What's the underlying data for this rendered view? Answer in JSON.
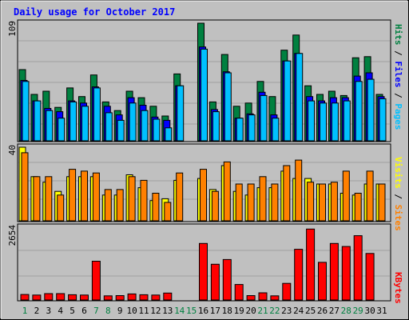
{
  "chart_data": {
    "type": "bar",
    "title": "Daily usage for October 2017",
    "categories": [
      "1",
      "2",
      "3",
      "4",
      "5",
      "6",
      "7",
      "8",
      "9",
      "10",
      "11",
      "12",
      "13",
      "14",
      "15",
      "16",
      "17",
      "18",
      "19",
      "20",
      "21",
      "22",
      "23",
      "24",
      "25",
      "26",
      "27",
      "28",
      "29",
      "30",
      "31"
    ],
    "weekend_days": [
      1,
      7,
      8,
      14,
      15,
      21,
      22,
      28,
      29
    ],
    "missing_days": [
      15
    ],
    "panels": {
      "top": {
        "ylabel_parts": [
          "Pages",
          "/",
          "Files",
          "/",
          "Hits"
        ],
        "ymax_label": "109",
        "ylim": [
          0,
          109
        ],
        "series": [
          {
            "name": "Hits",
            "color": "#008040",
            "values": [
              66,
              43,
              46,
              31,
              49,
              41,
              61,
              36,
              28,
              46,
              40,
              32,
              23,
              62,
              0,
              109,
              36,
              80,
              32,
              35,
              55,
              41,
              84,
              98,
              51,
              43,
              46,
              42,
              77,
              78,
              43
            ]
          },
          {
            "name": "Files",
            "color": "#0000ff",
            "values": [
              56,
              37,
              30,
              27,
              37,
              35,
              50,
              32,
              24,
              40,
              33,
              22,
              19,
              51,
              0,
              87,
              29,
              64,
              21,
              25,
              45,
              24,
              74,
              81,
              41,
              37,
              40,
              40,
              60,
              63,
              41
            ]
          },
          {
            "name": "Pages",
            "color": "#00c0ff",
            "values": [
              55,
              37,
              28,
              21,
              36,
              32,
              49,
              26,
              19,
              35,
              28,
              20,
              12,
              51,
              0,
              85,
              27,
              63,
              21,
              24,
              42,
              21,
              74,
              81,
              37,
              35,
              35,
              37,
              55,
              57,
              39
            ]
          }
        ]
      },
      "middle": {
        "ylabel_parts": [
          "Sites",
          "/",
          "Visits"
        ],
        "ymax_label": "40",
        "ylim": [
          0,
          40
        ],
        "series": [
          {
            "name": "Visits",
            "color": "#ffff00",
            "values": [
              40,
              24,
              21,
              16,
              24,
              24,
              24,
              14,
              14,
              25,
              18,
              11,
              12,
              22,
              0,
              23,
              17,
              30,
              16,
              14,
              18,
              18,
              27,
              23,
              23,
              20,
              20,
              15,
              14,
              20,
              20
            ]
          },
          {
            "name": "Sites",
            "color": "#ff8000",
            "values": [
              37,
              24,
              24,
              14,
              28,
              27,
              26,
              17,
              17,
              24,
              22,
              15,
              10,
              26,
              0,
              28,
              16,
              32,
              20,
              20,
              24,
              20,
              30,
              33,
              21,
              20,
              21,
              27,
              15,
              27,
              20
            ]
          }
        ]
      },
      "bottom": {
        "ylabel_parts": [
          "KBytes"
        ],
        "ymax_label": "2654",
        "ylim": [
          0,
          2654
        ],
        "series": [
          {
            "name": "KBytes",
            "color": "#ff0000",
            "values": [
              200,
              180,
              230,
              230,
              190,
              180,
              1400,
              150,
              160,
              220,
              190,
              180,
              250,
              0,
              0,
              2040,
              1290,
              1460,
              560,
              160,
              260,
              150,
              600,
              1830,
              2560,
              1360,
              2040,
              1930,
              2320,
              1680,
              0
            ]
          }
        ]
      }
    }
  }
}
